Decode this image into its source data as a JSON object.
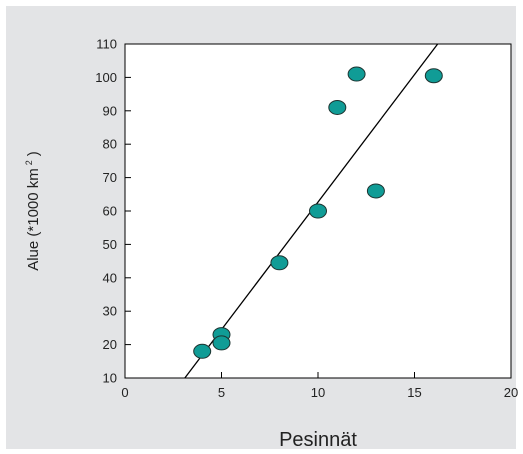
{
  "chart_data": {
    "type": "scatter",
    "title": "",
    "xlabel": "Pesinnät",
    "ylabel_main": "Alue (*1000 km",
    "ylabel_sup": "2",
    "ylabel_close": ")",
    "xlim": [
      0,
      20
    ],
    "ylim": [
      10,
      110
    ],
    "xticks": [
      0,
      5,
      10,
      15,
      20
    ],
    "yticks": [
      10,
      20,
      30,
      40,
      50,
      60,
      70,
      80,
      90,
      100,
      110
    ],
    "grid": false,
    "points": [
      {
        "x": 4,
        "y": 18
      },
      {
        "x": 5,
        "y": 23
      },
      {
        "x": 5,
        "y": 20.5
      },
      {
        "x": 8,
        "y": 44.5
      },
      {
        "x": 10,
        "y": 60
      },
      {
        "x": 11,
        "y": 91
      },
      {
        "x": 12,
        "y": 101
      },
      {
        "x": 13,
        "y": 66
      },
      {
        "x": 16,
        "y": 100.5
      }
    ],
    "trendline": [
      {
        "x": 3.1,
        "y": 10
      },
      {
        "x": 16.2,
        "y": 110
      }
    ],
    "colors": {
      "marker_fill": "#109c96",
      "marker_stroke": "#1d3330",
      "background": "#e3e4e6"
    }
  }
}
